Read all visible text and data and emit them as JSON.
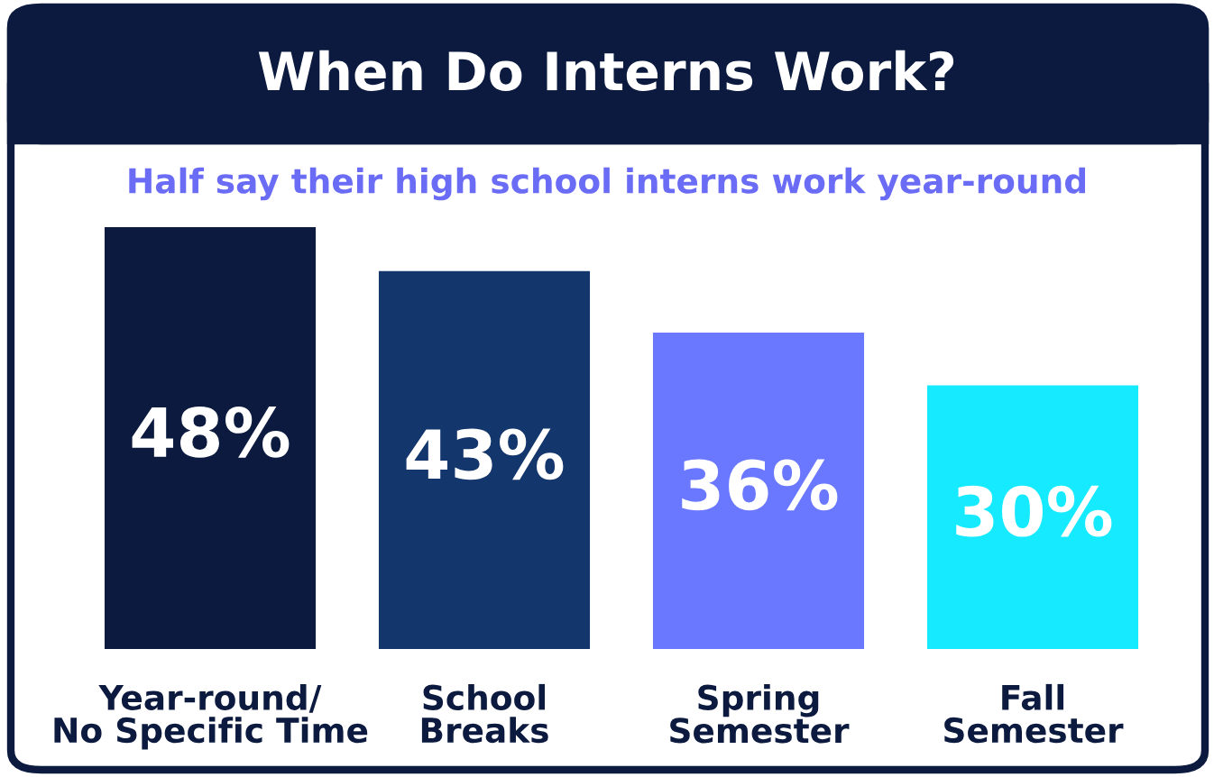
{
  "chart_data": {
    "type": "bar",
    "title": "When Do Interns Work?",
    "subtitle": "Half say their high school interns work year-round",
    "categories": [
      "Year-round/\nNo Specific Time",
      "School\nBreaks",
      "Spring\nSemester",
      "Fall\nSemester"
    ],
    "values": [
      48,
      43,
      36,
      30
    ],
    "value_labels": [
      "48%",
      "43%",
      "36%",
      "30%"
    ],
    "colors": [
      "#0b1a3e",
      "#13366c",
      "#6a78ff",
      "#16eaff"
    ],
    "grid": false,
    "legend": false
  }
}
